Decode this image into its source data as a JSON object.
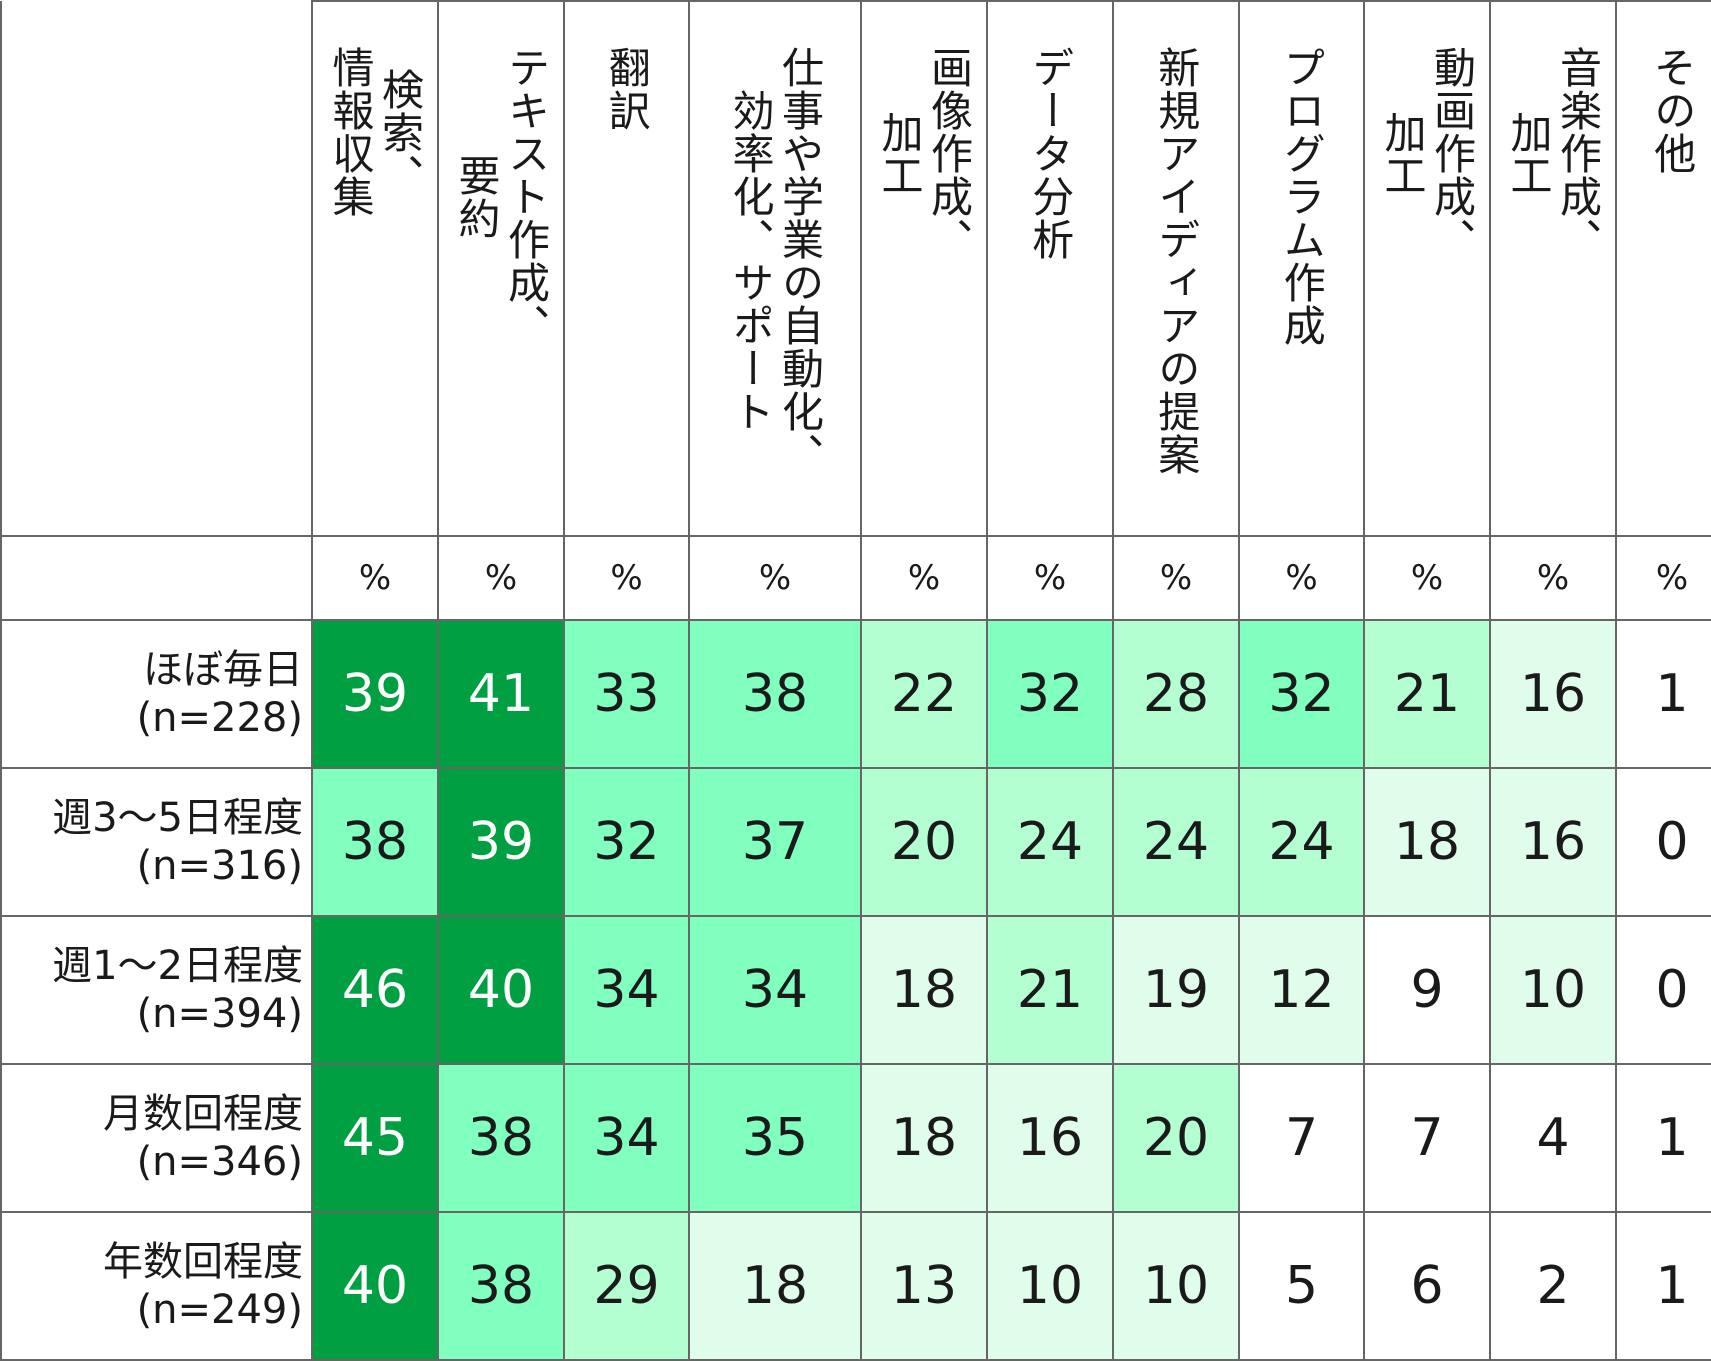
{
  "chart_data": {
    "type": "table",
    "unit": "%",
    "columns": [
      "検索、情報収集",
      "テキスト作成、要約",
      "翻訳",
      "仕事や学業の自動化、効率化、サポート",
      "画像作成、加工",
      "データ分析",
      "新規アイディアの提案",
      "プログラム作成",
      "動画作成、加工",
      "音楽作成、加工",
      "その他"
    ],
    "column_lines": [
      [
        "検索、",
        "情報収集"
      ],
      [
        "テキスト作成、",
        "要約"
      ],
      [
        "翻訳"
      ],
      [
        "仕事や学業の自動化、",
        "効率化、サポート"
      ],
      [
        "画像作成、",
        "加工"
      ],
      [
        "データ分析"
      ],
      [
        "新規アイディアの提案"
      ],
      [
        "プログラム作成"
      ],
      [
        "動画作成、",
        "加工"
      ],
      [
        "音楽作成、",
        "加工"
      ],
      [
        "その他"
      ]
    ],
    "rows": [
      {
        "label": "ほぼ毎日",
        "n": "(n=228)",
        "values": [
          39,
          41,
          33,
          38,
          22,
          32,
          28,
          32,
          21,
          16,
          1
        ]
      },
      {
        "label": "週3～5日程度",
        "n": "(n=316)",
        "values": [
          38,
          39,
          32,
          37,
          20,
          24,
          24,
          24,
          18,
          16,
          0
        ]
      },
      {
        "label": "週1～2日程度",
        "n": "(n=394)",
        "values": [
          46,
          40,
          34,
          34,
          18,
          21,
          19,
          12,
          9,
          10,
          0
        ]
      },
      {
        "label": "月数回程度",
        "n": "(n=346)",
        "values": [
          45,
          38,
          34,
          35,
          18,
          16,
          20,
          7,
          7,
          4,
          1
        ]
      },
      {
        "label": "年数回程度",
        "n": "(n=249)",
        "values": [
          40,
          38,
          29,
          18,
          13,
          10,
          10,
          5,
          6,
          2,
          1
        ]
      }
    ],
    "colors": {
      "level_top": "#009f42",
      "level_high": "#80ffbf",
      "level_mid": "#b3ffd2",
      "level_low": "#e0fdec",
      "level_none": "#ffffff",
      "text_dark": "#1a1a1a",
      "text_light": "#ffffff"
    }
  }
}
